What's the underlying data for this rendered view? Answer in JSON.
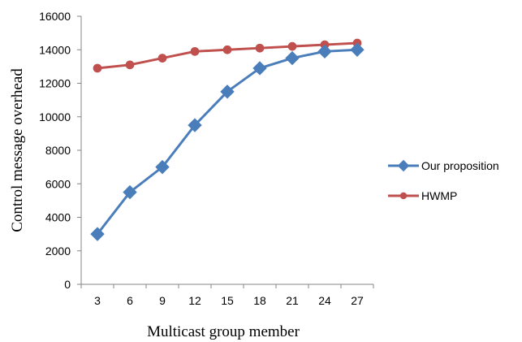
{
  "chart_data": {
    "type": "line",
    "title": "",
    "xlabel": "Multicast group member",
    "ylabel": "Control message overhead",
    "x": [
      3,
      6,
      9,
      12,
      15,
      18,
      21,
      24,
      27
    ],
    "ylim": [
      0,
      16000
    ],
    "yticks": [
      0,
      2000,
      4000,
      6000,
      8000,
      10000,
      12000,
      14000,
      16000
    ],
    "grid": false,
    "legend_position": "right",
    "series": [
      {
        "name": "Our proposition",
        "color": "#4a7ebb",
        "marker": "diamond",
        "values": [
          3000,
          5500,
          7000,
          9500,
          11500,
          12900,
          13500,
          13900,
          14000
        ]
      },
      {
        "name": "HWMP",
        "color": "#c0504d",
        "marker": "circle",
        "values": [
          12900,
          13100,
          13500,
          13900,
          14000,
          14100,
          14200,
          14300,
          14400
        ]
      }
    ]
  }
}
